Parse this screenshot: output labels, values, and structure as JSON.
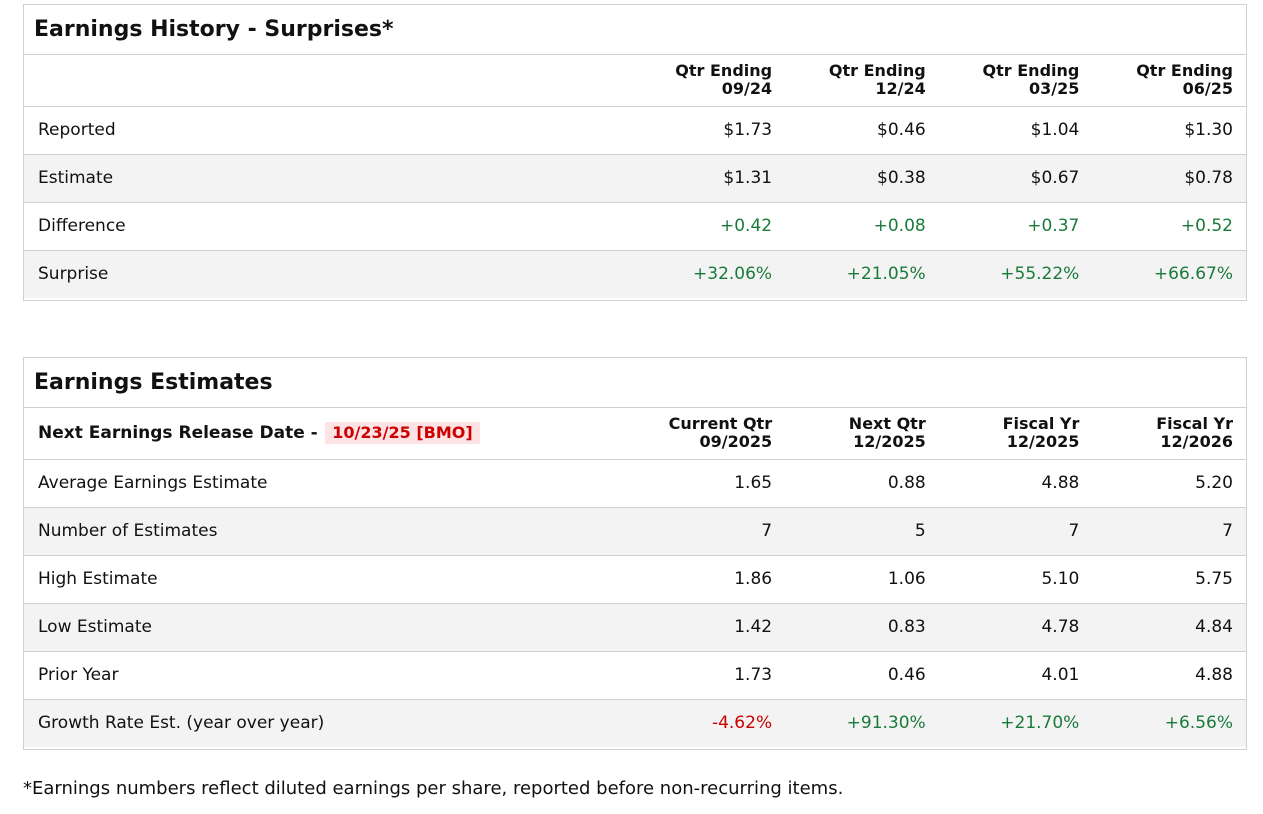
{
  "history": {
    "title": "Earnings History - Surprises*",
    "columns": [
      {
        "line1": "Qtr Ending",
        "line2": "09/24"
      },
      {
        "line1": "Qtr Ending",
        "line2": "12/24"
      },
      {
        "line1": "Qtr Ending",
        "line2": "03/25"
      },
      {
        "line1": "Qtr Ending",
        "line2": "06/25"
      }
    ],
    "rows": [
      {
        "label": "Reported",
        "values": [
          "$1.73",
          "$0.46",
          "$1.04",
          "$1.30"
        ],
        "tone": "neutral"
      },
      {
        "label": "Estimate",
        "values": [
          "$1.31",
          "$0.38",
          "$0.67",
          "$0.78"
        ],
        "tone": "neutral"
      },
      {
        "label": "Difference",
        "values": [
          "+0.42",
          "+0.08",
          "+0.37",
          "+0.52"
        ],
        "tone": "positive"
      },
      {
        "label": "Surprise",
        "values": [
          "+32.06%",
          "+21.05%",
          "+55.22%",
          "+66.67%"
        ],
        "tone": "positive"
      }
    ]
  },
  "estimates": {
    "title": "Earnings Estimates",
    "release_label": "Next Earnings Release Date -",
    "release_date": "10/23/25 [BMO]",
    "columns": [
      {
        "line1": "Current Qtr",
        "line2": "09/2025"
      },
      {
        "line1": "Next Qtr",
        "line2": "12/2025"
      },
      {
        "line1": "Fiscal Yr",
        "line2": "12/2025"
      },
      {
        "line1": "Fiscal Yr",
        "line2": "12/2026"
      }
    ],
    "rows": [
      {
        "label": "Average Earnings Estimate",
        "values": [
          "1.65",
          "0.88",
          "4.88",
          "5.20"
        ]
      },
      {
        "label": "Number of Estimates",
        "values": [
          "7",
          "5",
          "7",
          "7"
        ]
      },
      {
        "label": "High Estimate",
        "values": [
          "1.86",
          "1.06",
          "5.10",
          "5.75"
        ]
      },
      {
        "label": "Low Estimate",
        "values": [
          "1.42",
          "0.83",
          "4.78",
          "4.84"
        ]
      },
      {
        "label": "Prior Year",
        "values": [
          "1.73",
          "0.46",
          "4.01",
          "4.88"
        ]
      },
      {
        "label": "Growth Rate Est. (year over year)",
        "values": [
          "-4.62%",
          "+91.30%",
          "+21.70%",
          "+6.56%"
        ]
      }
    ]
  },
  "footnote": "*Earnings numbers reflect diluted earnings per share, reported before non-recurring items.",
  "colors": {
    "positive": "#1a7a3a",
    "negative": "#cc0000",
    "release_badge_bg": "#fde3e3",
    "alt_row_bg": "#f3f3f3",
    "border": "#d0d0d0"
  }
}
